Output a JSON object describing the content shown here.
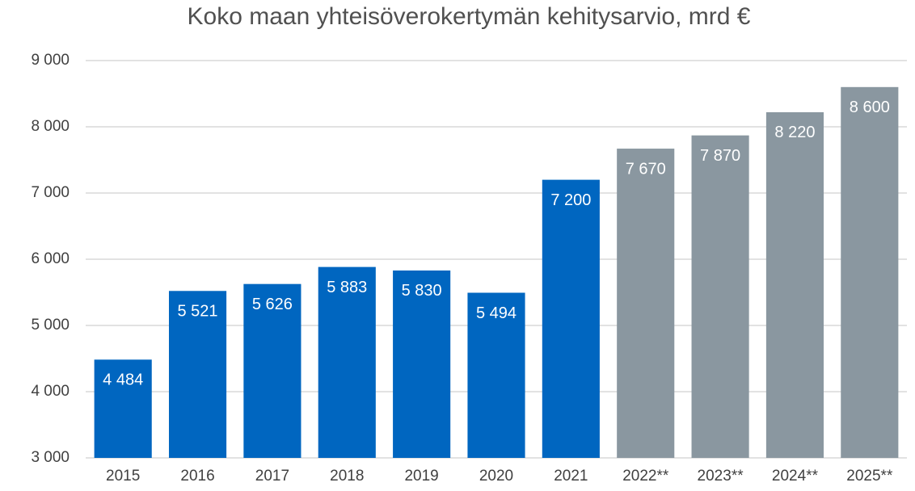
{
  "chart_data": {
    "type": "bar",
    "title": "Koko maan yhteisöverokertymän kehitysarvio, mrd €",
    "categories": [
      "2015",
      "2016",
      "2017",
      "2018",
      "2019",
      "2020",
      "2021",
      "2022**",
      "2023**",
      "2024**",
      "2025**"
    ],
    "values": [
      4484,
      5521,
      5626,
      5883,
      5830,
      5494,
      7200,
      7670,
      7870,
      8220,
      8600
    ],
    "value_labels": [
      "4 484",
      "5 521",
      "5 626",
      "5 883",
      "5 830",
      "5 494",
      "7 200",
      "7 670",
      "7 870",
      "8 220",
      "8 600"
    ],
    "colors": [
      "#0066c0",
      "#0066c0",
      "#0066c0",
      "#0066c0",
      "#0066c0",
      "#0066c0",
      "#0066c0",
      "#8a97a0",
      "#8a97a0",
      "#8a97a0",
      "#8a97a0"
    ],
    "ylim": [
      3000,
      9000
    ],
    "yticks": [
      {
        "value": 3000,
        "label": "3 000"
      },
      {
        "value": 4000,
        "label": "4 000"
      },
      {
        "value": 5000,
        "label": "5 000"
      },
      {
        "value": 6000,
        "label": "6 000"
      },
      {
        "value": 7000,
        "label": "7 000"
      },
      {
        "value": 8000,
        "label": "8 000"
      },
      {
        "value": 9000,
        "label": "9 000"
      }
    ],
    "grid": true
  }
}
